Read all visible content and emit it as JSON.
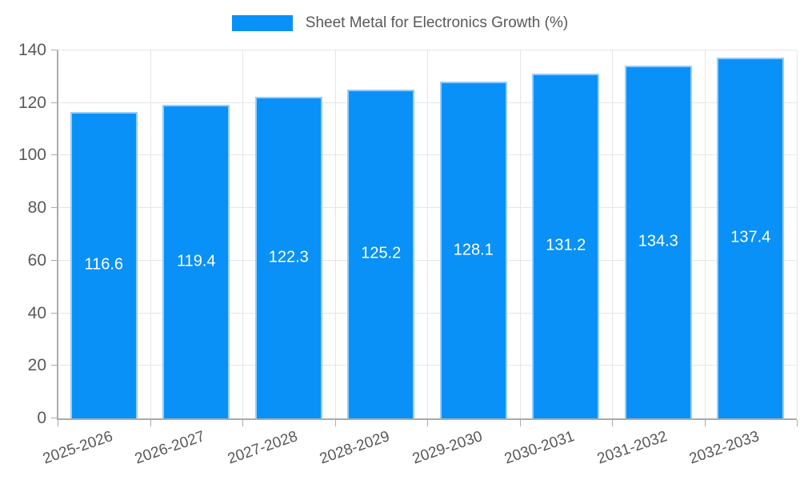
{
  "chart_data": {
    "type": "bar",
    "title": "Sheet Metal for Electronics Growth (%)",
    "categories": [
      "2025-2026",
      "2026-2027",
      "2027-2028",
      "2028-2029",
      "2029-2030",
      "2030-2031",
      "2031-2032",
      "2032-2033"
    ],
    "values": [
      116.6,
      119.4,
      122.3,
      125.2,
      128.1,
      131.2,
      134.3,
      137.4
    ],
    "value_labels": [
      "116.6",
      "119.4",
      "122.3",
      "125.2",
      "128.1",
      "131.2",
      "134.3",
      "137.4"
    ],
    "xlabel": "",
    "ylabel": "",
    "ylim": [
      0,
      140
    ],
    "yticks": [
      0,
      20,
      40,
      60,
      80,
      100,
      120,
      140
    ],
    "ytick_labels": [
      "0",
      "20",
      "40",
      "60",
      "80",
      "100",
      "120",
      "140"
    ],
    "grid": true,
    "legend_position": "top",
    "colors": {
      "bar_fill": "#0a91f7",
      "bar_border": "#96cdfa",
      "value_text": "#ffffff",
      "grid": "#e6e6e6",
      "axis": "#ababab",
      "tick_text": "#595959",
      "title_text": "#595959",
      "background": "#ffffff"
    }
  }
}
